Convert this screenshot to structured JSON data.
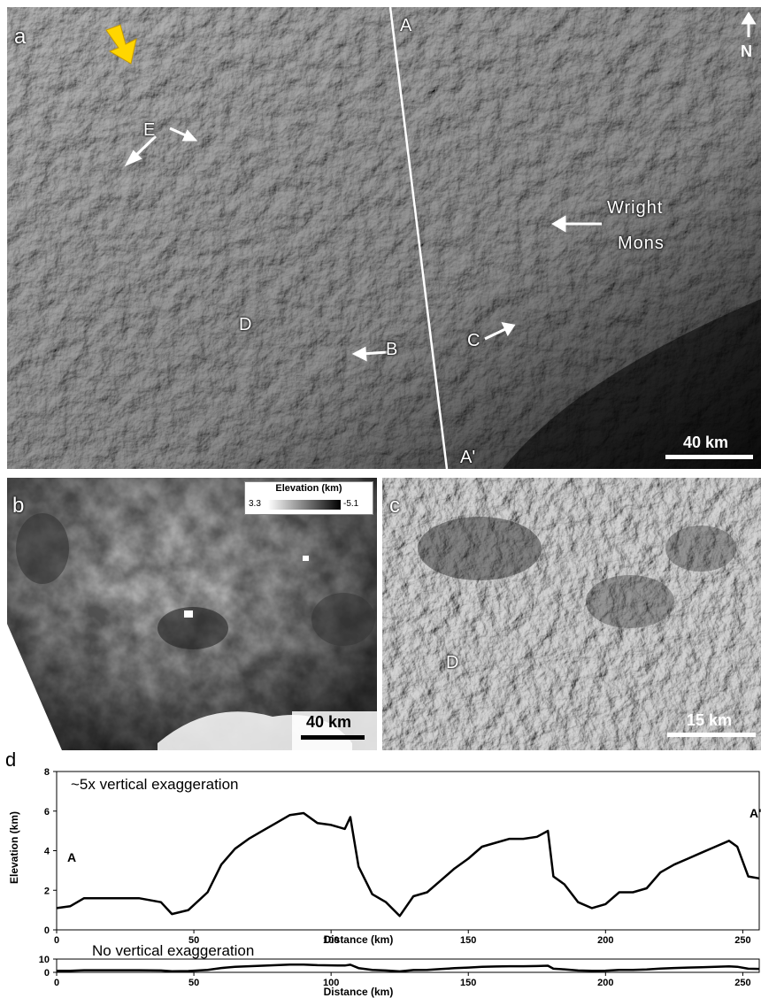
{
  "figure": {
    "panel_a": {
      "letter": "a",
      "north": "N",
      "labels": {
        "A": "A",
        "A_prime": "A'",
        "B": "B",
        "C": "C",
        "D": "D",
        "E": "E",
        "wright1": "Wright",
        "wright2": "Mons"
      },
      "scalebar": "40 km"
    },
    "panel_b": {
      "letter": "b",
      "legend_title": "Elevation (km)",
      "legend_min": "3.3",
      "legend_max": "-5.1",
      "scalebar": "40 km"
    },
    "panel_c": {
      "letter": "c",
      "label_D": "D",
      "scalebar": "15 km"
    },
    "panel_d": {
      "letter": "d",
      "top_caption": "~5x vertical exaggeration",
      "bottom_caption": "No vertical exaggeration",
      "ylabel": "Elevation (km)",
      "xlabel": "Distance (km)",
      "endpoint_A": "A",
      "endpoint_A_prime": "A'"
    }
  },
  "chart_data": [
    {
      "type": "line",
      "title": "~5x vertical exaggeration",
      "xlabel": "Distance (km)",
      "ylabel": "Elevation (km)",
      "xlim": [
        0,
        256
      ],
      "ylim": [
        0,
        8
      ],
      "xticks": [
        0,
        50,
        100,
        150,
        200,
        250
      ],
      "yticks": [
        0,
        2,
        4,
        6,
        8
      ],
      "series": [
        {
          "x": [
            0,
            5,
            10,
            20,
            30,
            38,
            42,
            48,
            55,
            60,
            65,
            70,
            75,
            80,
            85,
            90,
            95,
            100,
            105,
            107,
            110,
            115,
            120,
            125,
            130,
            135,
            140,
            145,
            150,
            155,
            160,
            165,
            170,
            175,
            179,
            181,
            185,
            190,
            195,
            200,
            205,
            210,
            215,
            220,
            225,
            230,
            235,
            240,
            245,
            248,
            252,
            256
          ],
          "y": [
            1.1,
            1.2,
            1.6,
            1.6,
            1.6,
            1.4,
            0.8,
            1.0,
            1.9,
            3.3,
            4.1,
            4.6,
            5.0,
            5.4,
            5.8,
            5.9,
            5.4,
            5.3,
            5.1,
            5.7,
            3.2,
            1.8,
            1.4,
            0.7,
            1.7,
            1.9,
            2.5,
            3.1,
            3.6,
            4.2,
            4.4,
            4.6,
            4.6,
            4.7,
            5.0,
            2.7,
            2.3,
            1.4,
            1.1,
            1.3,
            1.9,
            1.9,
            2.1,
            2.9,
            3.3,
            3.6,
            3.9,
            4.2,
            4.5,
            4.2,
            2.7,
            2.6
          ]
        }
      ]
    },
    {
      "type": "line",
      "title": "No vertical exaggeration",
      "xlabel": "Distance (km)",
      "ylabel": "",
      "xlim": [
        0,
        256
      ],
      "ylim": [
        0,
        10
      ],
      "xticks": [
        0,
        50,
        100,
        150,
        200,
        250
      ],
      "yticks": [
        0,
        10
      ],
      "series": [
        {
          "x": [
            0,
            5,
            10,
            20,
            30,
            38,
            42,
            48,
            55,
            60,
            65,
            70,
            75,
            80,
            85,
            90,
            95,
            100,
            105,
            107,
            110,
            115,
            120,
            125,
            130,
            135,
            140,
            145,
            150,
            155,
            160,
            165,
            170,
            175,
            179,
            181,
            185,
            190,
            195,
            200,
            205,
            210,
            215,
            220,
            225,
            230,
            235,
            240,
            245,
            248,
            252,
            256
          ],
          "y": [
            1.1,
            1.2,
            1.6,
            1.6,
            1.6,
            1.4,
            0.8,
            1.0,
            1.9,
            3.3,
            4.1,
            4.6,
            5.0,
            5.4,
            5.8,
            5.9,
            5.4,
            5.3,
            5.1,
            5.7,
            3.2,
            1.8,
            1.4,
            0.7,
            1.7,
            1.9,
            2.5,
            3.1,
            3.6,
            4.2,
            4.4,
            4.6,
            4.6,
            4.7,
            5.0,
            2.7,
            2.3,
            1.4,
            1.1,
            1.3,
            1.9,
            1.9,
            2.1,
            2.9,
            3.3,
            3.6,
            3.9,
            4.2,
            4.5,
            4.2,
            2.7,
            2.6
          ]
        }
      ]
    }
  ]
}
